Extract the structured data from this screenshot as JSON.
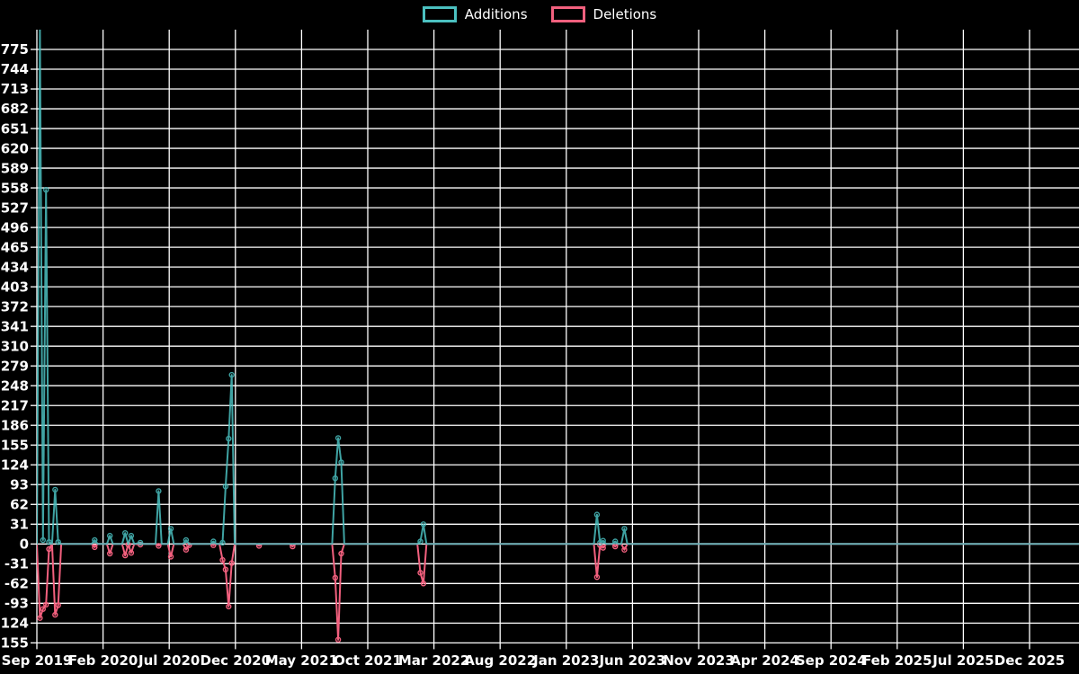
{
  "legend": {
    "items": [
      {
        "label": "Additions",
        "color": "#4BC0C0"
      },
      {
        "label": "Deletions",
        "color": "#F2607E"
      }
    ]
  },
  "chart_data": {
    "type": "line",
    "title": "",
    "background_color": "#000000",
    "grid": true,
    "grid_color": "#FFFFFF",
    "text_color": "#FFFFFF",
    "legend_position": "top-center",
    "y_axis": {
      "min": -155,
      "max": 775,
      "tick_step": 31,
      "tick_labels": [
        775,
        744,
        713,
        682,
        651,
        620,
        589,
        558,
        527,
        496,
        465,
        434,
        403,
        372,
        341,
        310,
        279,
        248,
        217,
        186,
        155,
        124,
        93,
        62,
        31,
        0,
        -31,
        -62,
        -93,
        -124,
        -155
      ]
    },
    "x_axis": {
      "start_month": "2019-09",
      "months_per_tick": 5,
      "tick_labels": [
        "Sep 2019",
        "Feb 2020",
        "Jul 2020",
        "Dec 2020",
        "May 2021",
        "Oct 2021",
        "Mar 2022",
        "Aug 2022",
        "Jan 2023",
        "Jun 2023",
        "Nov 2023",
        "Apr 2024",
        "Sep 2024",
        "Feb 2025",
        "Jul 2025",
        "Dec 2025"
      ]
    },
    "series": [
      {
        "name": "Additions",
        "key": "add",
        "color": "#4BC0C0"
      },
      {
        "name": "Deletions",
        "key": "del",
        "color": "#F2607E"
      }
    ],
    "notes": "first Additions spike exceeds the visible axis maximum and is clipped at the plot top",
    "points": [
      {
        "d": "2019-09-01",
        "add": 0,
        "del": 0
      },
      {
        "d": "2019-09-08",
        "add": 810,
        "del": -116
      },
      {
        "d": "2019-09-15",
        "add": 6,
        "del": -102
      },
      {
        "d": "2019-09-22",
        "add": 555,
        "del": -95
      },
      {
        "d": "2019-09-29",
        "add": 3,
        "del": -8
      },
      {
        "d": "2019-10-06",
        "add": 0,
        "del": 0
      },
      {
        "d": "2019-10-13",
        "add": 85,
        "del": -111
      },
      {
        "d": "2019-10-20",
        "add": 3,
        "del": -96
      },
      {
        "d": "2019-10-27",
        "add": 0,
        "del": 0
      },
      {
        "d": "2020-01-05",
        "add": 0,
        "del": 0
      },
      {
        "d": "2020-01-12",
        "add": 6,
        "del": -5
      },
      {
        "d": "2020-01-19",
        "add": 0,
        "del": 0
      },
      {
        "d": "2020-02-09",
        "add": 0,
        "del": 0
      },
      {
        "d": "2020-02-16",
        "add": 13,
        "del": -15
      },
      {
        "d": "2020-02-23",
        "add": 0,
        "del": 0
      },
      {
        "d": "2020-03-15",
        "add": 0,
        "del": 0
      },
      {
        "d": "2020-03-22",
        "add": 17,
        "del": -18
      },
      {
        "d": "2020-03-29",
        "add": 0,
        "del": -1
      },
      {
        "d": "2020-04-05",
        "add": 13,
        "del": -14
      },
      {
        "d": "2020-04-12",
        "add": 0,
        "del": 0
      },
      {
        "d": "2020-04-26",
        "add": 2,
        "del": -1
      },
      {
        "d": "2020-05-03",
        "add": 0,
        "del": 0
      },
      {
        "d": "2020-05-31",
        "add": 0,
        "del": 0
      },
      {
        "d": "2020-06-07",
        "add": 83,
        "del": -3
      },
      {
        "d": "2020-06-14",
        "add": 0,
        "del": 0
      },
      {
        "d": "2020-06-28",
        "add": 0,
        "del": 0
      },
      {
        "d": "2020-07-05",
        "add": 24,
        "del": -20
      },
      {
        "d": "2020-07-12",
        "add": 0,
        "del": 0
      },
      {
        "d": "2020-08-02",
        "add": 0,
        "del": 0
      },
      {
        "d": "2020-08-09",
        "add": 6,
        "del": -9
      },
      {
        "d": "2020-08-16",
        "add": 0,
        "del": -2
      },
      {
        "d": "2020-08-23",
        "add": 0,
        "del": 0
      },
      {
        "d": "2020-10-04",
        "add": 0,
        "del": 0
      },
      {
        "d": "2020-10-11",
        "add": 4,
        "del": -2
      },
      {
        "d": "2020-10-18",
        "add": 0,
        "del": 0
      },
      {
        "d": "2020-10-25",
        "add": 0,
        "del": 0
      },
      {
        "d": "2020-11-01",
        "add": 2,
        "del": -25
      },
      {
        "d": "2020-11-08",
        "add": 90,
        "del": -40
      },
      {
        "d": "2020-11-15",
        "add": 165,
        "del": -98
      },
      {
        "d": "2020-11-22",
        "add": 265,
        "del": -30
      },
      {
        "d": "2020-11-29",
        "add": 0,
        "del": 0
      },
      {
        "d": "2021-01-17",
        "add": 0,
        "del": 0
      },
      {
        "d": "2021-01-24",
        "add": 0,
        "del": -3
      },
      {
        "d": "2021-01-31",
        "add": 0,
        "del": 0
      },
      {
        "d": "2021-04-04",
        "add": 0,
        "del": 0
      },
      {
        "d": "2021-04-11",
        "add": 0,
        "del": -4
      },
      {
        "d": "2021-04-18",
        "add": 0,
        "del": 0
      },
      {
        "d": "2021-07-11",
        "add": 0,
        "del": 0
      },
      {
        "d": "2021-07-18",
        "add": 103,
        "del": -53
      },
      {
        "d": "2021-07-25",
        "add": 166,
        "del": -150
      },
      {
        "d": "2021-08-01",
        "add": 128,
        "del": -15
      },
      {
        "d": "2021-08-08",
        "add": 0,
        "del": 0
      },
      {
        "d": "2022-01-23",
        "add": 0,
        "del": 0
      },
      {
        "d": "2022-01-30",
        "add": 4,
        "del": -45
      },
      {
        "d": "2022-02-06",
        "add": 31,
        "del": -62
      },
      {
        "d": "2022-02-13",
        "add": 0,
        "del": 0
      },
      {
        "d": "2023-03-05",
        "add": 0,
        "del": 0
      },
      {
        "d": "2023-03-12",
        "add": 46,
        "del": -52
      },
      {
        "d": "2023-03-19",
        "add": 2,
        "del": -2
      },
      {
        "d": "2023-03-26",
        "add": 5,
        "del": -6
      },
      {
        "d": "2023-04-02",
        "add": 0,
        "del": 0
      },
      {
        "d": "2023-04-16",
        "add": 0,
        "del": 0
      },
      {
        "d": "2023-04-23",
        "add": 4,
        "del": -4
      },
      {
        "d": "2023-04-30",
        "add": 0,
        "del": 0
      },
      {
        "d": "2023-05-07",
        "add": 0,
        "del": 0
      },
      {
        "d": "2023-05-14",
        "add": 24,
        "del": -9
      },
      {
        "d": "2023-05-21",
        "add": 0,
        "del": 0
      },
      {
        "d": "2026-04-01",
        "add": 0,
        "del": 0
      }
    ]
  }
}
